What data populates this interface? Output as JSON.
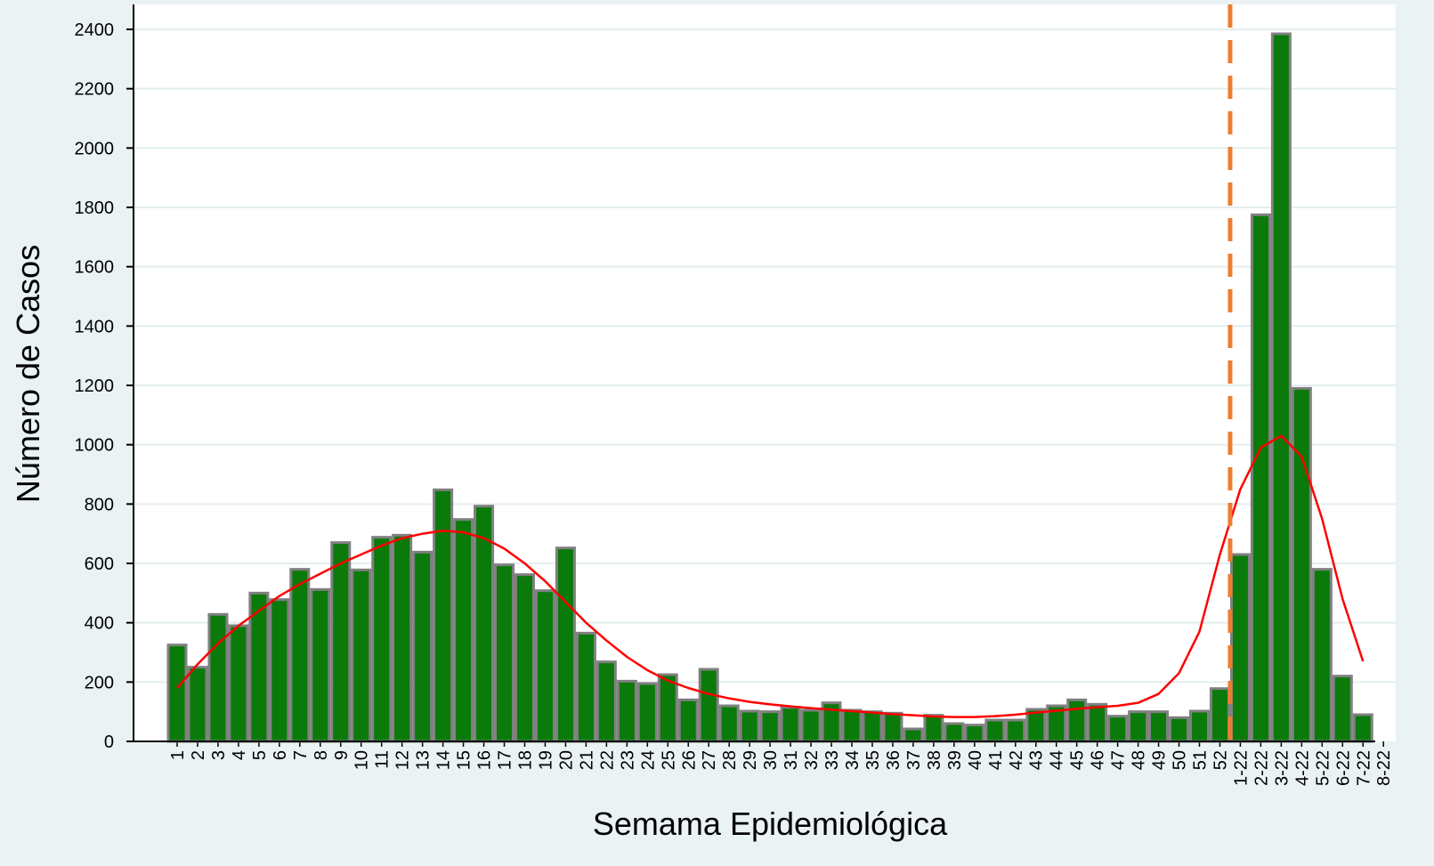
{
  "chart_data": {
    "type": "bar",
    "x_label": "Semama Epidemiológica",
    "y_label": "Número de Casos",
    "categories": [
      "1",
      "2",
      "3",
      "4",
      "5",
      "6",
      "7",
      "8",
      "9",
      "10",
      "11",
      "12",
      "13",
      "14",
      "15",
      "16",
      "17",
      "18",
      "19",
      "20",
      "21",
      "22",
      "23",
      "24",
      "25",
      "26",
      "27",
      "28",
      "29",
      "30",
      "31",
      "32",
      "33",
      "34",
      "35",
      "36",
      "37",
      "38",
      "39",
      "40",
      "41",
      "42",
      "43",
      "44",
      "45",
      "46",
      "47",
      "48",
      "49",
      "50",
      "51",
      "52",
      "1-22",
      "2-22",
      "3-22",
      "4-22",
      "5-22",
      "6-22",
      "7-22",
      "8-22"
    ],
    "values": [
      325,
      250,
      428,
      390,
      500,
      478,
      580,
      512,
      670,
      578,
      688,
      695,
      638,
      848,
      748,
      793,
      595,
      562,
      508,
      652,
      365,
      268,
      203,
      195,
      225,
      140,
      243,
      120,
      102,
      100,
      115,
      105,
      130,
      105,
      100,
      95,
      42,
      88,
      60,
      55,
      72,
      72,
      108,
      120,
      140,
      125,
      85,
      100,
      100,
      80,
      102,
      178,
      630,
      1775,
      2385,
      1190,
      580,
      220,
      90,
      null
    ],
    "color": "#0a7a0a",
    "edge_color": "#808080",
    "trend": {
      "color": "#ff0000",
      "values": [
        180,
        260,
        330,
        390,
        440,
        490,
        530,
        565,
        600,
        630,
        660,
        685,
        700,
        710,
        705,
        685,
        650,
        600,
        540,
        470,
        400,
        340,
        285,
        240,
        205,
        180,
        160,
        145,
        133,
        125,
        118,
        112,
        107,
        102,
        97,
        92,
        88,
        84,
        82,
        82,
        85,
        90,
        97,
        103,
        110,
        115,
        120,
        130,
        160,
        230,
        370,
        630,
        850,
        990,
        1030,
        960,
        750,
        480,
        270,
        null
      ]
    },
    "divider_color": "#ee7d31",
    "ylim": [
      0,
      2500
    ],
    "yticks": [
      0,
      200,
      400,
      600,
      800,
      1000,
      1200,
      1400,
      1600,
      1800,
      2000,
      2200,
      2400
    ],
    "grid": true
  }
}
